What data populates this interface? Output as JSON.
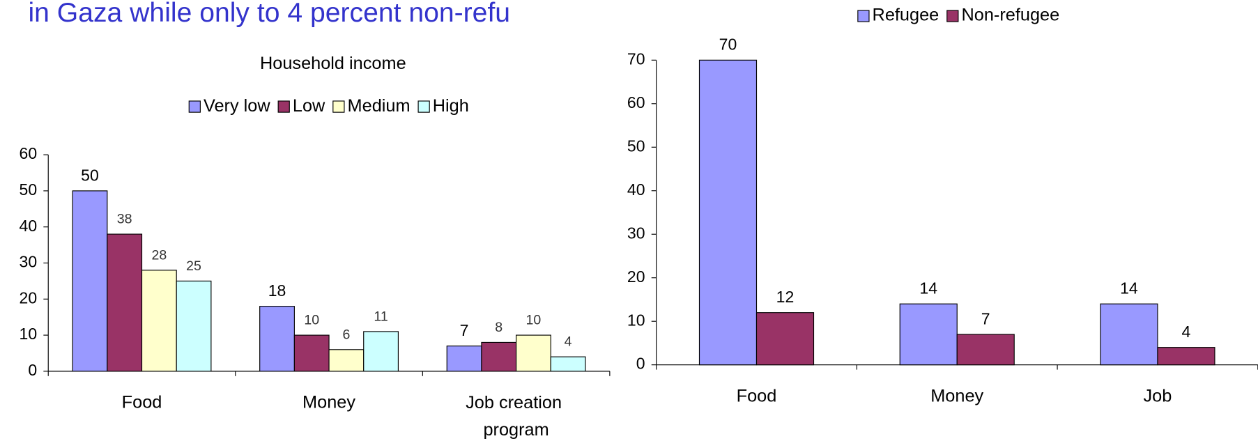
{
  "headline": "in Gaza while only to 4 percent non-refu",
  "chart_data": [
    {
      "type": "bar",
      "title": "Household income",
      "categories": [
        "Food",
        "Money",
        "Job creation program"
      ],
      "series": [
        {
          "name": "Very low",
          "color": "#9999ff",
          "values": [
            50,
            18,
            7
          ]
        },
        {
          "name": "Low",
          "color": "#993366",
          "values": [
            38,
            10,
            8
          ]
        },
        {
          "name": "Medium",
          "color": "#ffffcc",
          "values": [
            28,
            6,
            10
          ]
        },
        {
          "name": "High",
          "color": "#ccffff",
          "values": [
            25,
            11,
            4
          ]
        }
      ],
      "ylim": [
        0,
        60
      ],
      "yticks": [
        0,
        10,
        20,
        30,
        40,
        50,
        60
      ]
    },
    {
      "type": "bar",
      "categories": [
        "Food",
        "Money",
        "Job"
      ],
      "series": [
        {
          "name": "Refugee",
          "color": "#9999ff",
          "values": [
            70,
            14,
            14
          ]
        },
        {
          "name": "Non-refugee",
          "color": "#993366",
          "values": [
            12,
            7,
            4
          ]
        }
      ],
      "ylim": [
        0,
        70
      ],
      "yticks": [
        0,
        10,
        20,
        30,
        40,
        50,
        60,
        70
      ]
    }
  ]
}
